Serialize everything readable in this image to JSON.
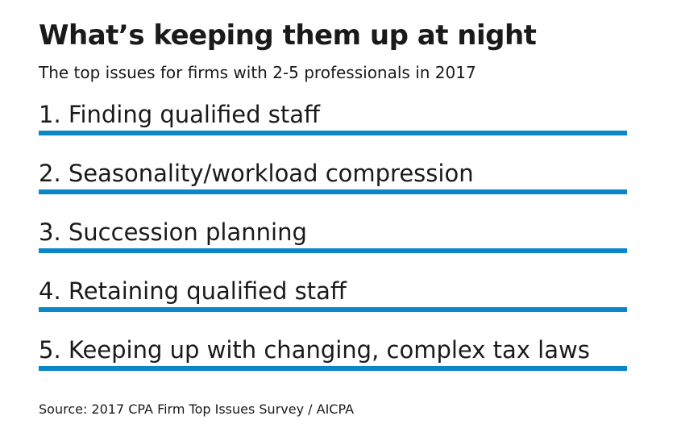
{
  "title": "What’s keeping them up at night",
  "subtitle": "The top issues for firms with 2-5 professionals in 2017",
  "items": [
    {
      "label": "1. Finding qualified staff"
    },
    {
      "label": "2. Seasonality/workload compression"
    },
    {
      "label": "3. Succession planning"
    },
    {
      "label": "4. Retaining qualified staff"
    },
    {
      "label": "5. Keeping up with changing, complex tax laws"
    }
  ],
  "source": "Source: 2017 CPA Firm Top Issues Survey / AICPA",
  "colors": {
    "accent": "#0a87c9",
    "text": "#1a1a1a",
    "background": "#ffffff"
  }
}
